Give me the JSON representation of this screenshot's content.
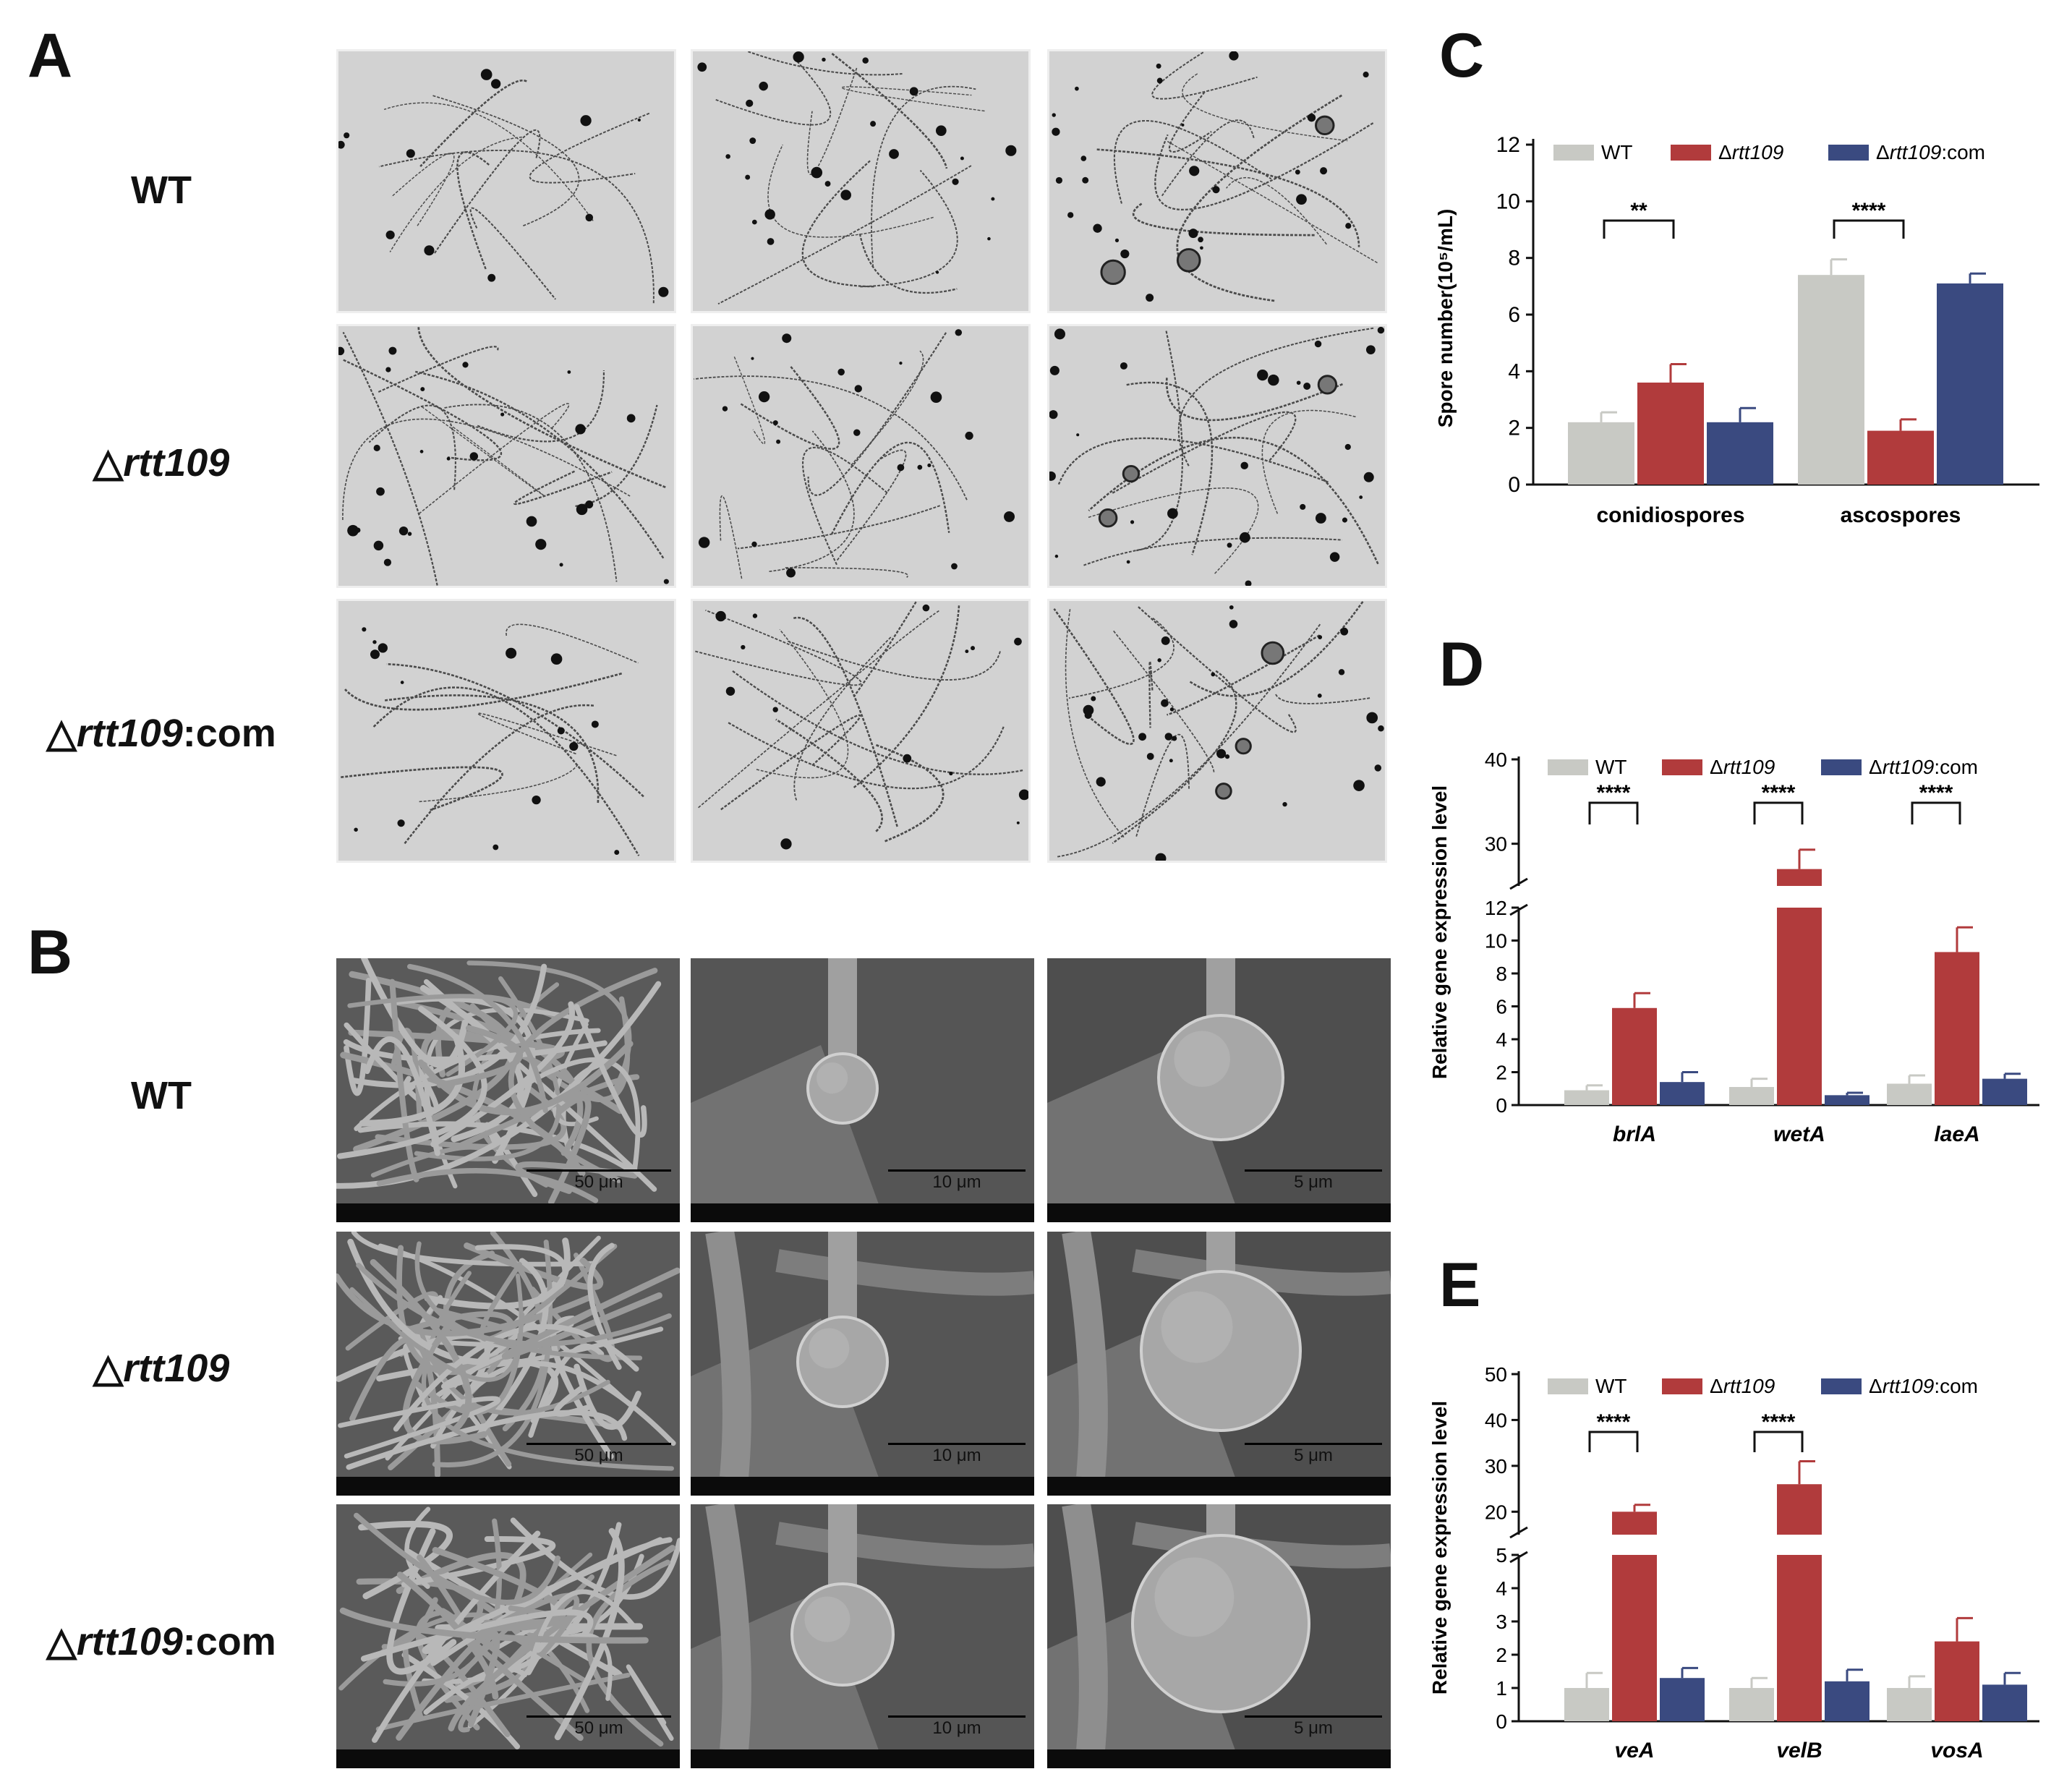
{
  "panels": {
    "A": "A",
    "B": "B",
    "C": "C",
    "D": "D",
    "E": "E"
  },
  "row_labels_A": [
    {
      "prefix": "",
      "italic": "",
      "suffix": "WT"
    },
    {
      "prefix": "△",
      "italic": "rtt109",
      "suffix": ""
    },
    {
      "prefix": "△",
      "italic": "rtt109",
      "suffix": ":com"
    }
  ],
  "row_labels_B": [
    {
      "prefix": "",
      "italic": "",
      "suffix": "WT"
    },
    {
      "prefix": "△",
      "italic": "rtt109",
      "suffix": ""
    },
    {
      "prefix": "△",
      "italic": "rtt109",
      "suffix": ":com"
    }
  ],
  "sem_scalebars": [
    "50 μm",
    "10 μm",
    "5 μm"
  ],
  "colors": {
    "wt": "#c8c9c4",
    "mut": "#b13b3c",
    "com": "#3a4a80"
  },
  "chart_data": [
    {
      "id": "C",
      "type": "bar",
      "ylabel": "Spore number(10⁵/mL)",
      "ylim": [
        0,
        12
      ],
      "yticks": [
        0,
        2,
        4,
        6,
        8,
        10,
        12
      ],
      "categories": [
        "conidiospores",
        "ascospores"
      ],
      "category_italic": false,
      "series": [
        {
          "name": "WT",
          "values": [
            2.2,
            7.4
          ],
          "errors": [
            0.35,
            0.55
          ]
        },
        {
          "name": "Δrtt109",
          "values": [
            3.6,
            1.9
          ],
          "errors": [
            0.65,
            0.4
          ]
        },
        {
          "name": "Δrtt109:com",
          "values": [
            2.2,
            7.1
          ],
          "errors": [
            0.5,
            0.35
          ]
        }
      ],
      "significance": [
        {
          "category": 0,
          "label": "**"
        },
        {
          "category": 1,
          "label": "****"
        }
      ]
    },
    {
      "id": "D",
      "type": "bar",
      "ylabel": "Relative gene expression level",
      "yaxis_break": {
        "lower": [
          0,
          12
        ],
        "upper": [
          25,
          40
        ]
      },
      "yticks_lower": [
        0,
        2,
        4,
        6,
        8,
        10,
        12
      ],
      "yticks_upper": [
        30,
        40
      ],
      "categories": [
        "brlA",
        "wetA",
        "laeA"
      ],
      "category_italic": true,
      "series": [
        {
          "name": "WT",
          "values": [
            0.9,
            1.1,
            1.3
          ],
          "errors": [
            0.3,
            0.5,
            0.5
          ]
        },
        {
          "name": "Δrtt109",
          "values": [
            5.9,
            27.0,
            9.3
          ],
          "errors": [
            0.9,
            2.3,
            1.5
          ]
        },
        {
          "name": "Δrtt109:com",
          "values": [
            1.4,
            0.6,
            1.6
          ],
          "errors": [
            0.6,
            0.15,
            0.3
          ]
        }
      ],
      "significance": [
        {
          "category": 0,
          "label": "****"
        },
        {
          "category": 1,
          "label": "****"
        },
        {
          "category": 2,
          "label": "****"
        }
      ]
    },
    {
      "id": "E",
      "type": "bar",
      "ylabel": "Relative gene expression level",
      "yaxis_break": {
        "lower": [
          0,
          5
        ],
        "upper": [
          15,
          50
        ]
      },
      "yticks_lower": [
        0,
        1,
        2,
        3,
        4,
        5
      ],
      "yticks_upper": [
        20,
        30,
        40,
        50
      ],
      "categories": [
        "veA",
        "velB",
        "vosA"
      ],
      "category_italic": true,
      "series": [
        {
          "name": "WT",
          "values": [
            1.0,
            1.0,
            1.0
          ],
          "errors": [
            0.45,
            0.3,
            0.35
          ]
        },
        {
          "name": "Δrtt109",
          "values": [
            20.0,
            26.0,
            2.4
          ],
          "errors": [
            1.5,
            5.0,
            0.7
          ]
        },
        {
          "name": "Δrtt109:com",
          "values": [
            1.3,
            1.2,
            1.1
          ],
          "errors": [
            0.3,
            0.35,
            0.35
          ]
        }
      ],
      "significance": [
        {
          "category": 0,
          "label": "****"
        },
        {
          "category": 1,
          "label": "****"
        }
      ]
    }
  ]
}
